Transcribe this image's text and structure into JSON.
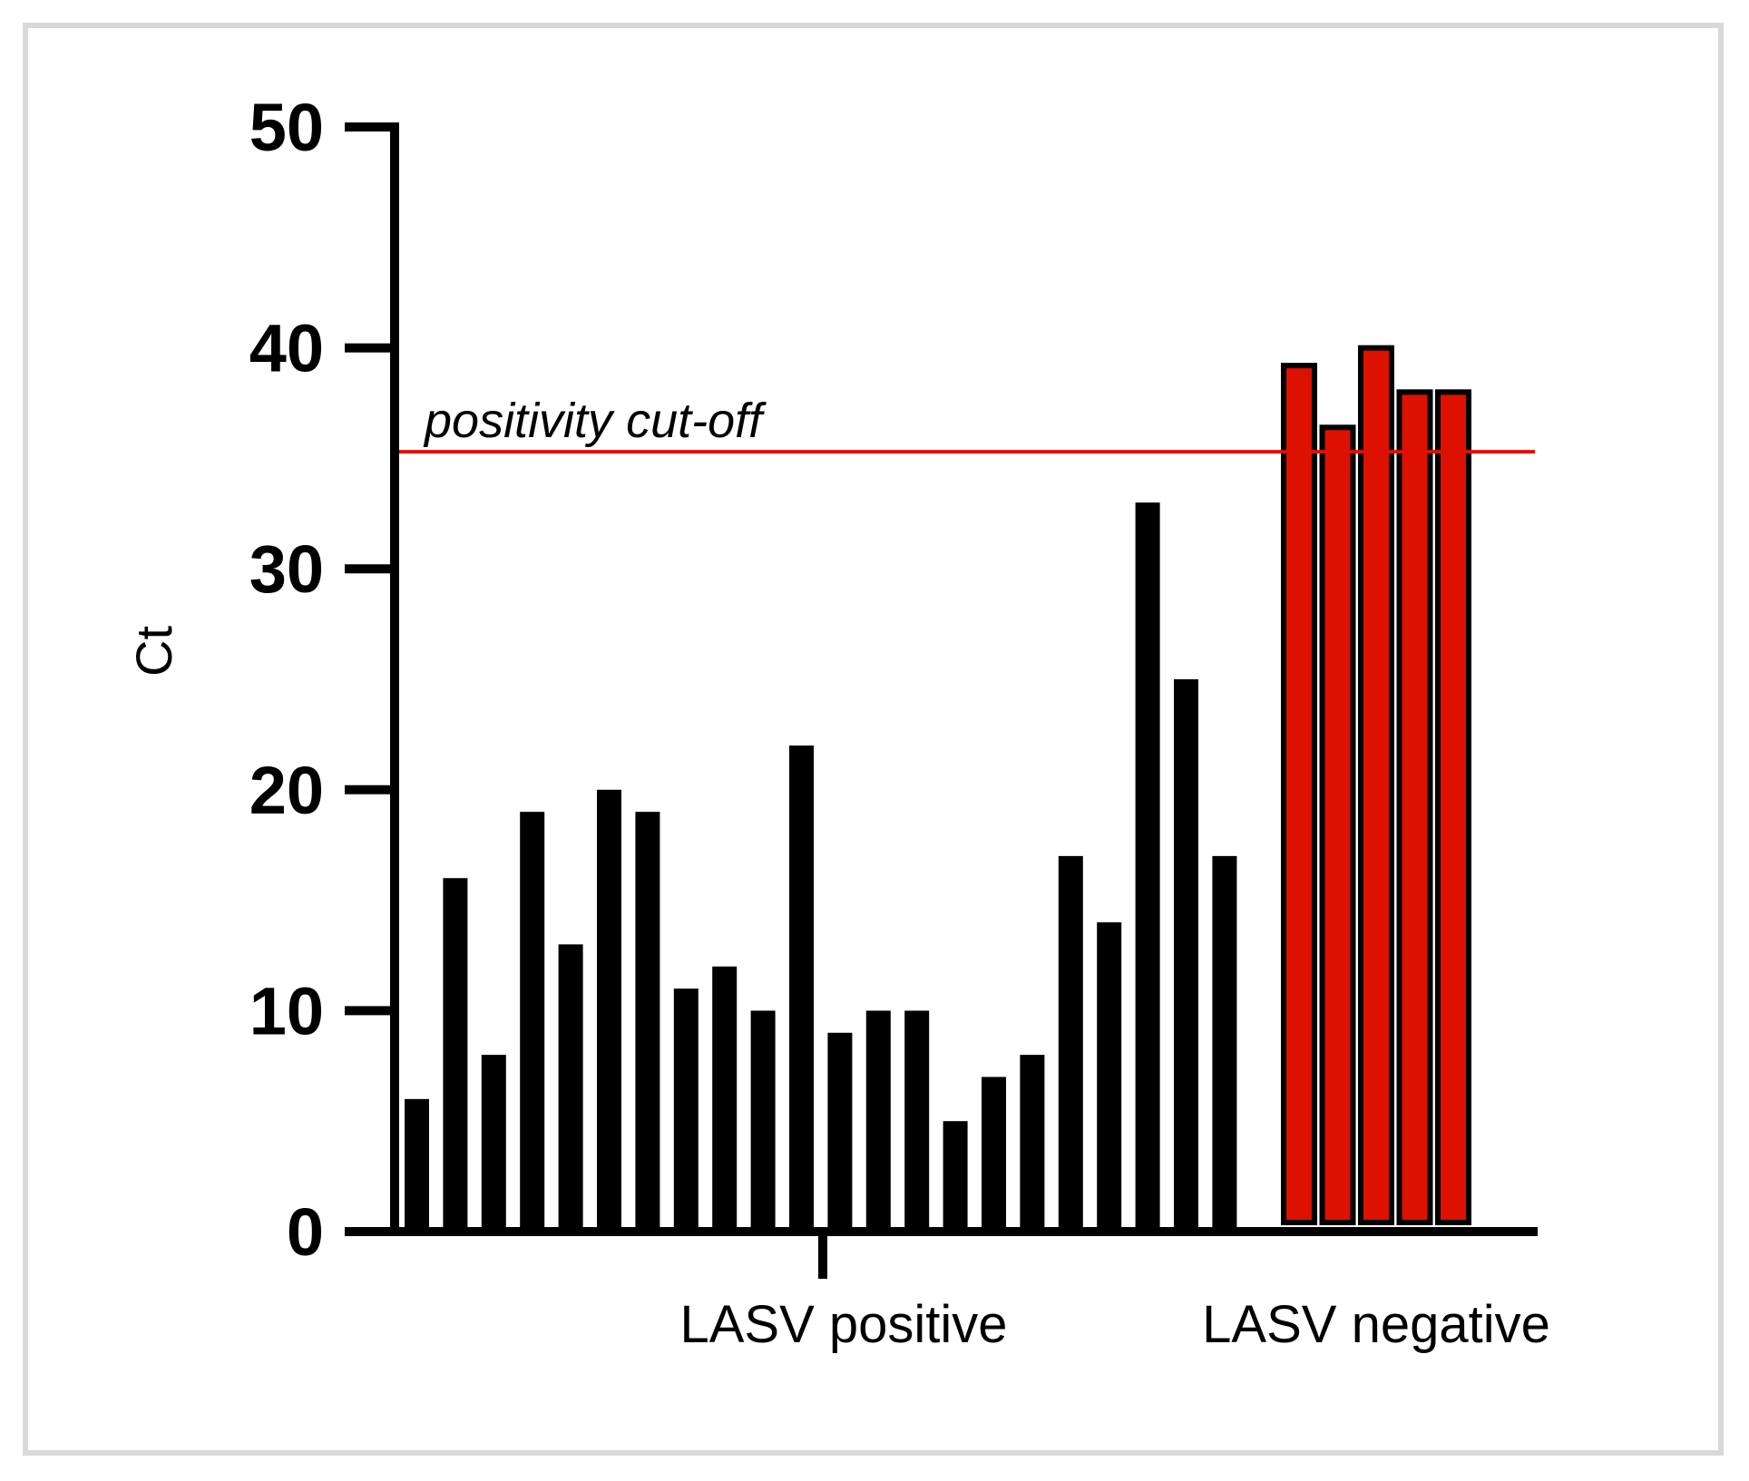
{
  "chart_data": {
    "type": "bar",
    "title": "",
    "xlabel": "",
    "ylabel": "Ct",
    "ylim": [
      0,
      50
    ],
    "yticks": [
      0,
      10,
      20,
      30,
      40,
      50
    ],
    "grid": false,
    "groups": [
      {
        "name": "LASV positive",
        "color": "#000000",
        "values": [
          6,
          16,
          8,
          19,
          13,
          20,
          19,
          11,
          12,
          10,
          22,
          9,
          10,
          10,
          5,
          7,
          8,
          17,
          14,
          33,
          25,
          17
        ]
      },
      {
        "name": "LASV negative",
        "color": "#dd1100",
        "values": [
          39.2,
          36.4,
          40,
          38,
          38
        ]
      }
    ],
    "reference_line": {
      "label": "positivity cut-off",
      "value": 35.3,
      "color": "#dd1100"
    }
  }
}
